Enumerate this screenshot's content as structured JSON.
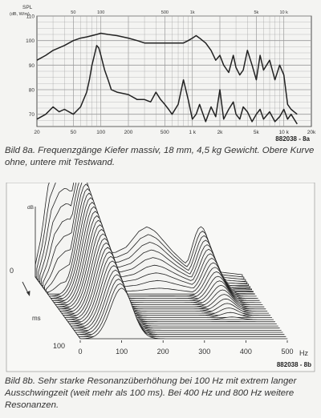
{
  "chart_data": [
    {
      "type": "line",
      "figure_id": "882038 - 8a",
      "ylabel": "SPL",
      "yunit": "(dB, W/m)",
      "x_scale": "log",
      "xlim": [
        20,
        20000
      ],
      "ylim": [
        65,
        110
      ],
      "ytick_labels": [
        "110",
        "100",
        "90",
        "80",
        "70"
      ],
      "ytick_values": [
        110,
        100,
        90,
        80,
        70
      ],
      "xtick_labels_bottom": [
        "20",
        "50",
        "100",
        "200",
        "500",
        "1 k",
        "2k",
        "5k",
        "10 k",
        "20k"
      ],
      "xtick_values_bottom": [
        20,
        50,
        100,
        200,
        500,
        1000,
        2000,
        5000,
        10000,
        20000
      ],
      "xtick_labels_top": [
        "50",
        "100",
        "500",
        "1k",
        "5k",
        "10 k"
      ],
      "xtick_values_top": [
        50,
        100,
        500,
        1000,
        5000,
        10000
      ],
      "grid": true,
      "series": [
        {
          "x": [
            20,
            25,
            30,
            40,
            50,
            60,
            70,
            80,
            90,
            100,
            120,
            150,
            200,
            250,
            300,
            400,
            500,
            600,
            700,
            800,
            900,
            1000,
            1100,
            1200,
            1400,
            1600,
            1800,
            2000,
            2200,
            2500,
            2800,
            3000,
            3300,
            3600,
            4000,
            4500,
            5000,
            5500,
            6000,
            7000,
            8000,
            9000,
            10000,
            11000,
            12000,
            14000
          ],
          "values": [
            92,
            94,
            96,
            98,
            100,
            101,
            101.5,
            102,
            102.5,
            103,
            102.5,
            102,
            101,
            100,
            99,
            99,
            99,
            99,
            99,
            99,
            100,
            101,
            102,
            101,
            99,
            96,
            92,
            94,
            90,
            87,
            94,
            89,
            86,
            88,
            96,
            90,
            84,
            94,
            88,
            92,
            84,
            90,
            86,
            74,
            72,
            70
          ]
        },
        {
          "x": [
            20,
            25,
            30,
            35,
            40,
            50,
            60,
            70,
            75,
            80,
            85,
            90,
            95,
            100,
            110,
            120,
            130,
            150,
            200,
            250,
            300,
            350,
            400,
            450,
            500,
            550,
            600,
            700,
            800,
            900,
            1000,
            1100,
            1200,
            1400,
            1600,
            1800,
            2000,
            2200,
            2500,
            2800,
            3000,
            3300,
            3600,
            4000,
            4500,
            5000,
            5500,
            6000,
            7000,
            8000,
            9000,
            10000,
            11000,
            12000,
            14000
          ],
          "values": [
            68,
            70,
            73,
            71,
            72,
            70,
            73,
            79,
            84,
            90,
            94,
            98,
            97,
            94,
            88,
            84,
            80,
            79,
            78,
            76,
            76,
            75,
            79,
            76,
            74,
            72,
            70,
            74,
            84,
            76,
            68,
            70,
            74,
            67,
            73,
            69,
            80,
            68,
            72,
            75,
            70,
            68,
            73,
            71,
            67,
            70,
            72,
            68,
            71,
            67,
            69,
            72,
            68,
            70,
            66
          ]
        }
      ]
    },
    {
      "type": "waterfall",
      "figure_id": "882038 - 8b",
      "xlabel": "Hz",
      "xlim": [
        0,
        500
      ],
      "xtick_labels": [
        "0",
        "100",
        "200",
        "300",
        "400",
        "500"
      ],
      "xtick_values": [
        0,
        100,
        200,
        300,
        400,
        500
      ],
      "time_label": "ms",
      "time_range": [
        0,
        100
      ],
      "time_tick_labels": [
        "0",
        "100"
      ],
      "ylabel": "dB",
      "slices": 30,
      "back_slices_shown": 4,
      "resonances_hz": [
        100,
        400
      ],
      "decay_front_hz": [
        0,
        15,
        30,
        50,
        65,
        80,
        95,
        110,
        125,
        140,
        160,
        190,
        220,
        250,
        270,
        290,
        310,
        330,
        360,
        400,
        450,
        500
      ],
      "decay_front_values": [
        0.1,
        0.35,
        0.75,
        0.95,
        1.0,
        0.95,
        0.8,
        0.55,
        0.38,
        0.3,
        0.25,
        0.2,
        0.25,
        0.38,
        0.42,
        0.38,
        0.3,
        0.22,
        0.12,
        0.08,
        0.04,
        0.02
      ]
    }
  ],
  "captions": {
    "fig8a": "Bild 8a. Frequenzgänge Kiefer massiv, 18 mm, 4,5 kg Gewicht. Obere Kurve ohne, untere mit Testwand.",
    "fig8b": "Bild 8b. Sehr starke Resonanzüberhöhung bei 100 Hz mit extrem langer Ausschwingzeit (weit mehr als 100 ms). Bei 400 Hz und 800 Hz weitere Resonanzen."
  },
  "colors": {
    "ink": "#222222",
    "grid": "#9a9a9a",
    "paper": "#f4f4f2"
  }
}
